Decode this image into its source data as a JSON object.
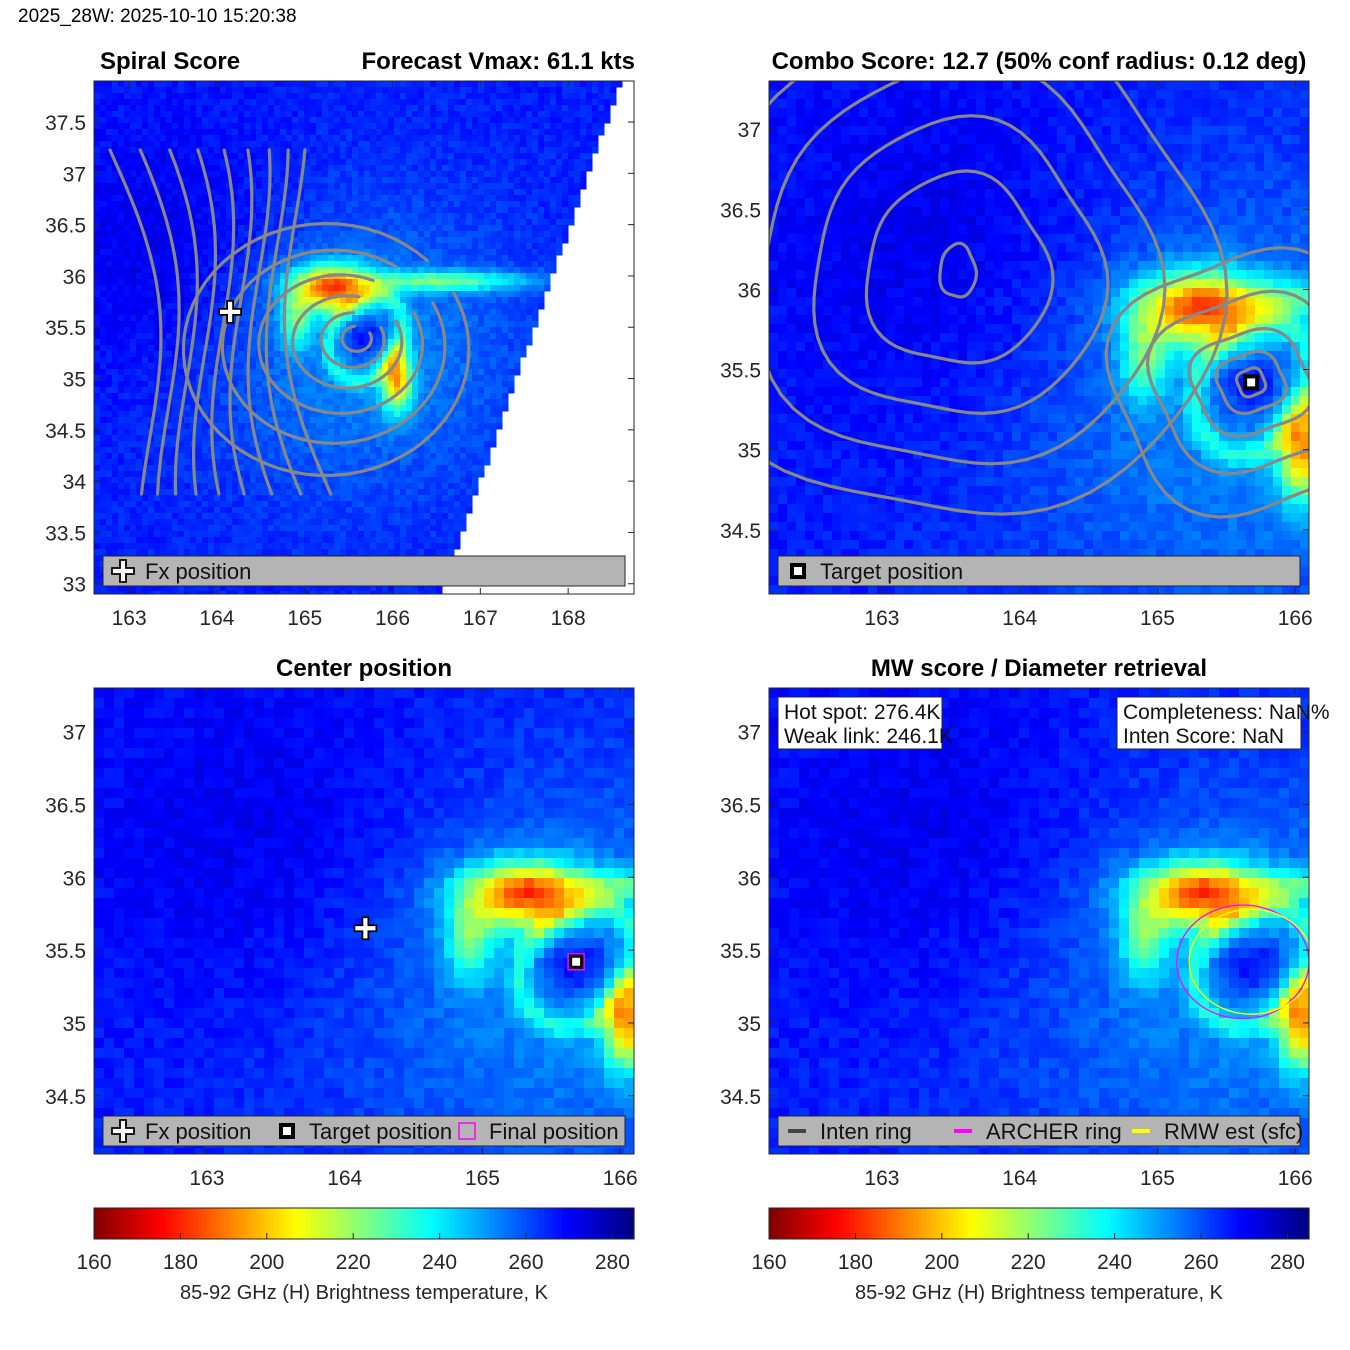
{
  "header": {
    "timestamp": "2025_28W: 2025-10-10 15:20:38"
  },
  "colormap": {
    "name": "jet-reversed",
    "stops": [
      "#800000",
      "#ff0000",
      "#ff8000",
      "#ffff00",
      "#80ff80",
      "#00ffff",
      "#0080ff",
      "#0000ff",
      "#000080"
    ]
  },
  "chart_data": [
    {
      "id": "spiral",
      "type": "heatmap",
      "title_left": "Spiral Score",
      "title_right": "Forecast Vmax: 61.1 kts",
      "xlim": [
        162.6,
        168.75
      ],
      "ylim": [
        32.9,
        37.9
      ],
      "xticks": [
        163,
        164,
        165,
        166,
        167,
        168
      ],
      "yticks": [
        33,
        33.5,
        34,
        34.5,
        35,
        35.5,
        36,
        36.5,
        37,
        37.5
      ],
      "swath_edge": {
        "bottom_lon": 166.55,
        "top_lon": 168.6
      },
      "features": [
        {
          "kind": "cold-band",
          "lon": 165.4,
          "lat": 35.9,
          "value": 165
        },
        {
          "kind": "cold-arm",
          "lon": 166.0,
          "lat": 34.95,
          "value": 172
        },
        {
          "kind": "warm-core",
          "lon": 165.7,
          "lat": 35.4,
          "value": 275
        }
      ],
      "contours_center": {
        "lon": 165.7,
        "lat": 35.4
      },
      "markers": [
        {
          "type": "fx",
          "lon": 164.15,
          "lat": 35.65
        }
      ],
      "legend": [
        {
          "symbol": "fx",
          "label": "Fx position"
        }
      ]
    },
    {
      "id": "combo",
      "type": "heatmap",
      "title": "Combo Score: 12.7  (50% conf radius: 0.12 deg)",
      "xlim": [
        162.18,
        166.1
      ],
      "ylim": [
        34.1,
        37.3
      ],
      "xticks": [
        163,
        164,
        165,
        166
      ],
      "yticks": [
        34.5,
        35,
        35.5,
        36,
        36.5,
        37
      ],
      "features": [
        {
          "kind": "cold-band",
          "lon": 165.5,
          "lat": 35.85,
          "value": 165
        },
        {
          "kind": "cold-arm",
          "lon": 166.05,
          "lat": 35.0,
          "value": 172
        },
        {
          "kind": "low-tb-min",
          "lon": 163.55,
          "lat": 36.3,
          "value": 270
        }
      ],
      "markers": [
        {
          "type": "target",
          "lon": 165.68,
          "lat": 35.42
        }
      ],
      "legend": [
        {
          "symbol": "target",
          "label": "Target position"
        }
      ]
    },
    {
      "id": "center",
      "type": "heatmap",
      "title": "Center position",
      "xlim": [
        162.18,
        166.1
      ],
      "ylim": [
        34.1,
        37.3
      ],
      "xticks": [
        163,
        164,
        165,
        166
      ],
      "yticks": [
        34.5,
        35,
        35.5,
        36,
        36.5,
        37
      ],
      "markers": [
        {
          "type": "fx",
          "lon": 164.15,
          "lat": 35.65
        },
        {
          "type": "target",
          "lon": 165.68,
          "lat": 35.42
        },
        {
          "type": "final",
          "lon": 165.68,
          "lat": 35.42
        }
      ],
      "legend": [
        {
          "symbol": "fx",
          "label": "Fx position"
        },
        {
          "symbol": "target",
          "label": "Target position"
        },
        {
          "symbol": "final",
          "label": "Final position"
        }
      ],
      "colorbar": {
        "min": 160,
        "max": 285,
        "ticks": [
          160,
          180,
          200,
          220,
          240,
          260,
          280
        ],
        "label": "85-92 GHz (H) Brightness temperature, K"
      }
    },
    {
      "id": "mw",
      "type": "heatmap",
      "title": "MW score / Diameter retrieval",
      "xlim": [
        162.18,
        166.1
      ],
      "ylim": [
        34.1,
        37.3
      ],
      "xticks": [
        163,
        164,
        165,
        166
      ],
      "yticks": [
        34.5,
        35,
        35.5,
        36,
        36.5,
        37
      ],
      "info_left": [
        "Hot spot: 276.4K",
        "Weak link: 246.1K"
      ],
      "info_right": [
        "Completeness: NaN%",
        "Inten Score: NaN"
      ],
      "rings": [
        {
          "kind": "archer",
          "lon": 165.62,
          "lat": 35.42,
          "rx_deg": 0.48,
          "ry_deg": 0.39,
          "color": "#ff00ff"
        },
        {
          "kind": "rmw",
          "lon": 165.68,
          "lat": 35.42,
          "rx_deg": 0.45,
          "ry_deg": 0.36,
          "color": "#ffff00"
        }
      ],
      "legend": [
        {
          "symbol": "line",
          "color": "#444444",
          "label": "Inten ring"
        },
        {
          "symbol": "line",
          "color": "#ff00ff",
          "label": "ARCHER ring"
        },
        {
          "symbol": "line",
          "color": "#ffff00",
          "label": "RMW est (sfc)"
        }
      ],
      "colorbar": {
        "min": 160,
        "max": 285,
        "ticks": [
          160,
          180,
          200,
          220,
          240,
          260,
          280
        ],
        "label": "85-92 GHz (H) Brightness temperature, K"
      }
    }
  ]
}
